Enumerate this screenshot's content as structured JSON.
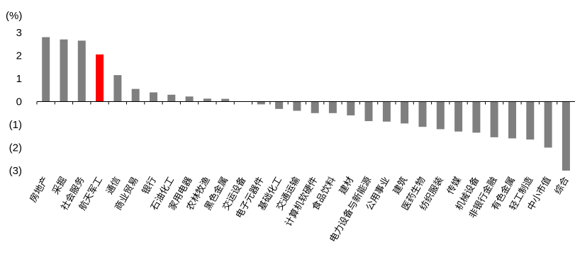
{
  "chart_data": {
    "type": "bar",
    "unit_label": "(%)",
    "title": "",
    "xlabel": "",
    "ylabel": "",
    "ylim": [
      -3,
      3
    ],
    "yticks": [
      3,
      2,
      1,
      0,
      -1,
      -2,
      -3
    ],
    "ytick_labels": [
      "3",
      "2",
      "1",
      "0",
      "(1)",
      "(2)",
      "(3)"
    ],
    "grid": false,
    "legend": "none",
    "colors": {
      "default": "#7f7f7f",
      "highlight": "#ff0000"
    },
    "highlight_category": "航天军工",
    "categories": [
      "房地产",
      "采掘",
      "社会服务",
      "航天军工",
      "通信",
      "商业贸易",
      "银行",
      "石油化工",
      "家用电器",
      "农林牧渔",
      "黑色金属",
      "交运设备",
      "电子元器件",
      "基础化工",
      "交通运输",
      "计算机软硬件",
      "食品饮料",
      "建材",
      "电力设备与新能源",
      "公用事业",
      "建筑",
      "医药生物",
      "纺织服装",
      "传媒",
      "机械设备",
      "非银行金融",
      "有色金属",
      "轻工制造",
      "中小市值",
      "综合"
    ],
    "values": [
      2.8,
      2.7,
      2.65,
      2.05,
      1.15,
      0.55,
      0.4,
      0.3,
      0.22,
      0.13,
      0.12,
      0.0,
      -0.12,
      -0.32,
      -0.4,
      -0.5,
      -0.5,
      -0.6,
      -0.85,
      -0.87,
      -0.95,
      -1.1,
      -1.2,
      -1.3,
      -1.35,
      -1.55,
      -1.6,
      -1.65,
      -2.0,
      -3.0
    ]
  }
}
